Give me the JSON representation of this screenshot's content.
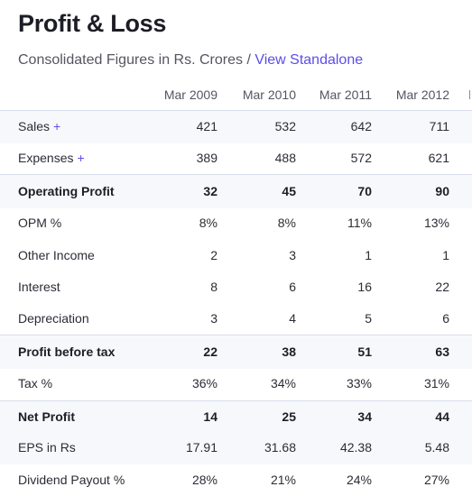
{
  "header": {
    "title": "Profit & Loss",
    "subtitle_prefix": "Consolidated Figures in Rs. Crores / ",
    "view_link": "View Standalone"
  },
  "table": {
    "columns": [
      "Mar 2009",
      "Mar 2010",
      "Mar 2011",
      "Mar 2012"
    ],
    "rows": [
      {
        "label": "Sales",
        "expandable": true,
        "values": [
          "421",
          "532",
          "642",
          "711"
        ]
      },
      {
        "label": "Expenses",
        "expandable": true,
        "values": [
          "389",
          "488",
          "572",
          "621"
        ]
      },
      {
        "label": "Operating Profit",
        "bold": true,
        "values": [
          "32",
          "45",
          "70",
          "90"
        ]
      },
      {
        "label": "OPM %",
        "values": [
          "8%",
          "8%",
          "11%",
          "13%"
        ]
      },
      {
        "label": "Other Income",
        "values": [
          "2",
          "3",
          "1",
          "1"
        ]
      },
      {
        "label": "Interest",
        "values": [
          "8",
          "6",
          "16",
          "22"
        ]
      },
      {
        "label": "Depreciation",
        "values": [
          "3",
          "4",
          "5",
          "6"
        ]
      },
      {
        "label": "Profit before tax",
        "bold": true,
        "values": [
          "22",
          "38",
          "51",
          "63"
        ]
      },
      {
        "label": "Tax %",
        "values": [
          "36%",
          "34%",
          "33%",
          "31%"
        ]
      },
      {
        "label": "Net Profit",
        "bold": true,
        "values": [
          "14",
          "25",
          "34",
          "44"
        ]
      },
      {
        "label": "EPS in Rs",
        "values": [
          "17.91",
          "31.68",
          "42.38",
          "5.48"
        ]
      },
      {
        "label": "Dividend Payout %",
        "values": [
          "28%",
          "21%",
          "24%",
          "27%"
        ]
      }
    ],
    "plus_symbol": "+"
  }
}
